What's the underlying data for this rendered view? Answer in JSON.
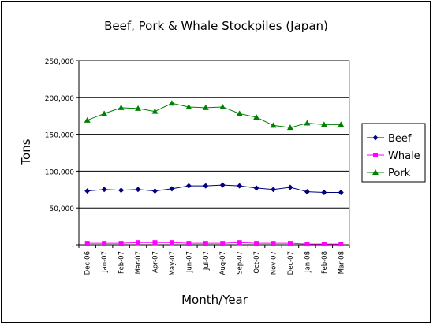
{
  "chart_data": {
    "type": "line",
    "title": "Beef, Pork & Whale Stockpiles (Japan)",
    "xlabel": "Month/Year",
    "ylabel": "Tons",
    "categories": [
      "Dec-06",
      "Jan-07",
      "Feb-07",
      "Mar-07",
      "Apr-07",
      "May-07",
      "Jun-07",
      "Jul-07",
      "Aug-07",
      "Sep-07",
      "Oct-07",
      "Nov-07",
      "Dec-07",
      "Jan-08",
      "Feb-08",
      "Mar-08"
    ],
    "ylim": [
      0,
      250000
    ],
    "yticks": [
      0,
      50000,
      100000,
      150000,
      200000,
      250000
    ],
    "ytick_labels": [
      "-",
      "50,000",
      "100,000",
      "150,000",
      "200,000",
      "250,000"
    ],
    "grid": true,
    "legend_position": "right",
    "series": [
      {
        "name": "Beef",
        "color": "#000080",
        "marker": "diamond",
        "values": [
          73000,
          75000,
          74000,
          75000,
          73000,
          76000,
          80000,
          80000,
          81000,
          80000,
          77000,
          75000,
          78000,
          72000,
          71000,
          71000
        ]
      },
      {
        "name": "Whale",
        "color": "#ff00ff",
        "marker": "square",
        "values": [
          2000,
          2000,
          2000,
          3000,
          3000,
          3000,
          2000,
          2000,
          2000,
          3000,
          2000,
          2000,
          2000,
          1000,
          1000,
          1000
        ]
      },
      {
        "name": "Pork",
        "color": "#008000",
        "marker": "triangle",
        "values": [
          169000,
          178000,
          186000,
          185000,
          181000,
          192000,
          187000,
          186000,
          187000,
          178000,
          173000,
          162000,
          159000,
          165000,
          163000,
          163000
        ]
      }
    ]
  }
}
